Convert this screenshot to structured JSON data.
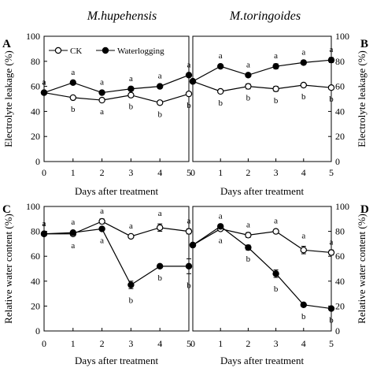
{
  "titles": [
    "M.hupehensis",
    "M.toringoides"
  ],
  "legend": {
    "ck": "CK",
    "waterlogging": "Waterlogging"
  },
  "colors": {
    "ck_fill": "#ffffff",
    "waterlogging_fill": "#000000",
    "line": "#000000"
  },
  "chart_data": [
    {
      "panel": "A",
      "type": "line",
      "xlabel": "Days after treatment",
      "ylabel": "Electrolyte leakage (%)",
      "xlim": [
        0,
        5
      ],
      "ylim": [
        0,
        100
      ],
      "xticks": [
        0,
        1,
        2,
        3,
        4,
        5
      ],
      "yticks": [
        0,
        20,
        40,
        60,
        80,
        100
      ],
      "x": [
        0,
        1,
        2,
        3,
        4,
        5
      ],
      "series": [
        {
          "name": "CK",
          "marker": "open-circle",
          "values": [
            55,
            51,
            49,
            53,
            47,
            54
          ],
          "err": [
            1,
            1,
            1,
            1,
            1,
            1
          ],
          "sig": [
            "a",
            "b",
            "a",
            "b",
            "b",
            "b"
          ]
        },
        {
          "name": "Waterlogging",
          "marker": "filled-circle",
          "values": [
            55,
            63,
            55,
            58,
            60,
            69
          ],
          "err": [
            1,
            1,
            1,
            1,
            1,
            1
          ],
          "sig": [
            "a",
            "a",
            "a",
            "a",
            "a",
            "a"
          ]
        }
      ]
    },
    {
      "panel": "B",
      "type": "line",
      "xlabel": "Days after treatment",
      "ylabel": "Electrolyte leakage (%)",
      "xlim": [
        0,
        5
      ],
      "ylim": [
        0,
        100
      ],
      "xticks": [
        0,
        1,
        2,
        3,
        4,
        5
      ],
      "yticks": [
        0,
        20,
        40,
        60,
        80,
        100
      ],
      "x": [
        0,
        1,
        2,
        3,
        4,
        5
      ],
      "series": [
        {
          "name": "CK",
          "marker": "open-circle",
          "values": [
            64,
            56,
            60,
            58,
            61,
            59
          ],
          "err": [
            1,
            1,
            2,
            2,
            1,
            1
          ],
          "sig": [
            "",
            "b",
            "b",
            "b",
            "b",
            "b"
          ]
        },
        {
          "name": "Waterlogging",
          "marker": "filled-circle",
          "values": [
            64,
            76,
            69,
            76,
            79,
            81
          ],
          "err": [
            1,
            1,
            1,
            2,
            1,
            2
          ],
          "sig": [
            "",
            "a",
            "a",
            "a",
            "a",
            "a"
          ]
        }
      ]
    },
    {
      "panel": "C",
      "type": "line",
      "xlabel": "Days after treatment",
      "ylabel": "Relative water content (%)",
      "xlim": [
        0,
        5
      ],
      "ylim": [
        0,
        100
      ],
      "xticks": [
        0,
        1,
        2,
        3,
        4,
        5
      ],
      "yticks": [
        0,
        20,
        40,
        60,
        80,
        100
      ],
      "x": [
        0,
        1,
        2,
        3,
        4,
        5
      ],
      "series": [
        {
          "name": "CK",
          "marker": "open-circle",
          "values": [
            78,
            78,
            88,
            76,
            83,
            80
          ],
          "err": [
            1,
            1,
            2,
            1,
            3,
            2
          ],
          "sig": [
            "a",
            "a",
            "a",
            "a",
            "a",
            "a"
          ]
        },
        {
          "name": "Waterlogging",
          "marker": "filled-circle",
          "values": [
            78,
            79,
            82,
            37,
            52,
            52
          ],
          "err": [
            1,
            1,
            1,
            3,
            1,
            6
          ],
          "sig": [
            "a",
            "a",
            "a",
            "b",
            "b",
            "b"
          ]
        }
      ]
    },
    {
      "panel": "D",
      "type": "line",
      "xlabel": "Days after treatment",
      "ylabel": "Relative water content (%)",
      "xlim": [
        0,
        5
      ],
      "ylim": [
        0,
        100
      ],
      "xticks": [
        0,
        1,
        2,
        3,
        4,
        5
      ],
      "yticks": [
        0,
        20,
        40,
        60,
        80,
        100
      ],
      "x": [
        0,
        1,
        2,
        3,
        4,
        5
      ],
      "series": [
        {
          "name": "CK",
          "marker": "open-circle",
          "values": [
            69,
            82,
            77,
            80,
            65,
            63
          ],
          "err": [
            1,
            1,
            2,
            1,
            3,
            2
          ],
          "sig": [
            "",
            "a",
            "a",
            "a",
            "a",
            "a"
          ]
        },
        {
          "name": "Waterlogging",
          "marker": "filled-circle",
          "values": [
            69,
            84,
            67,
            46,
            21,
            18
          ],
          "err": [
            1,
            1,
            2,
            3,
            1,
            1
          ],
          "sig": [
            "",
            "a",
            "b",
            "b",
            "b",
            "b"
          ]
        }
      ]
    }
  ]
}
